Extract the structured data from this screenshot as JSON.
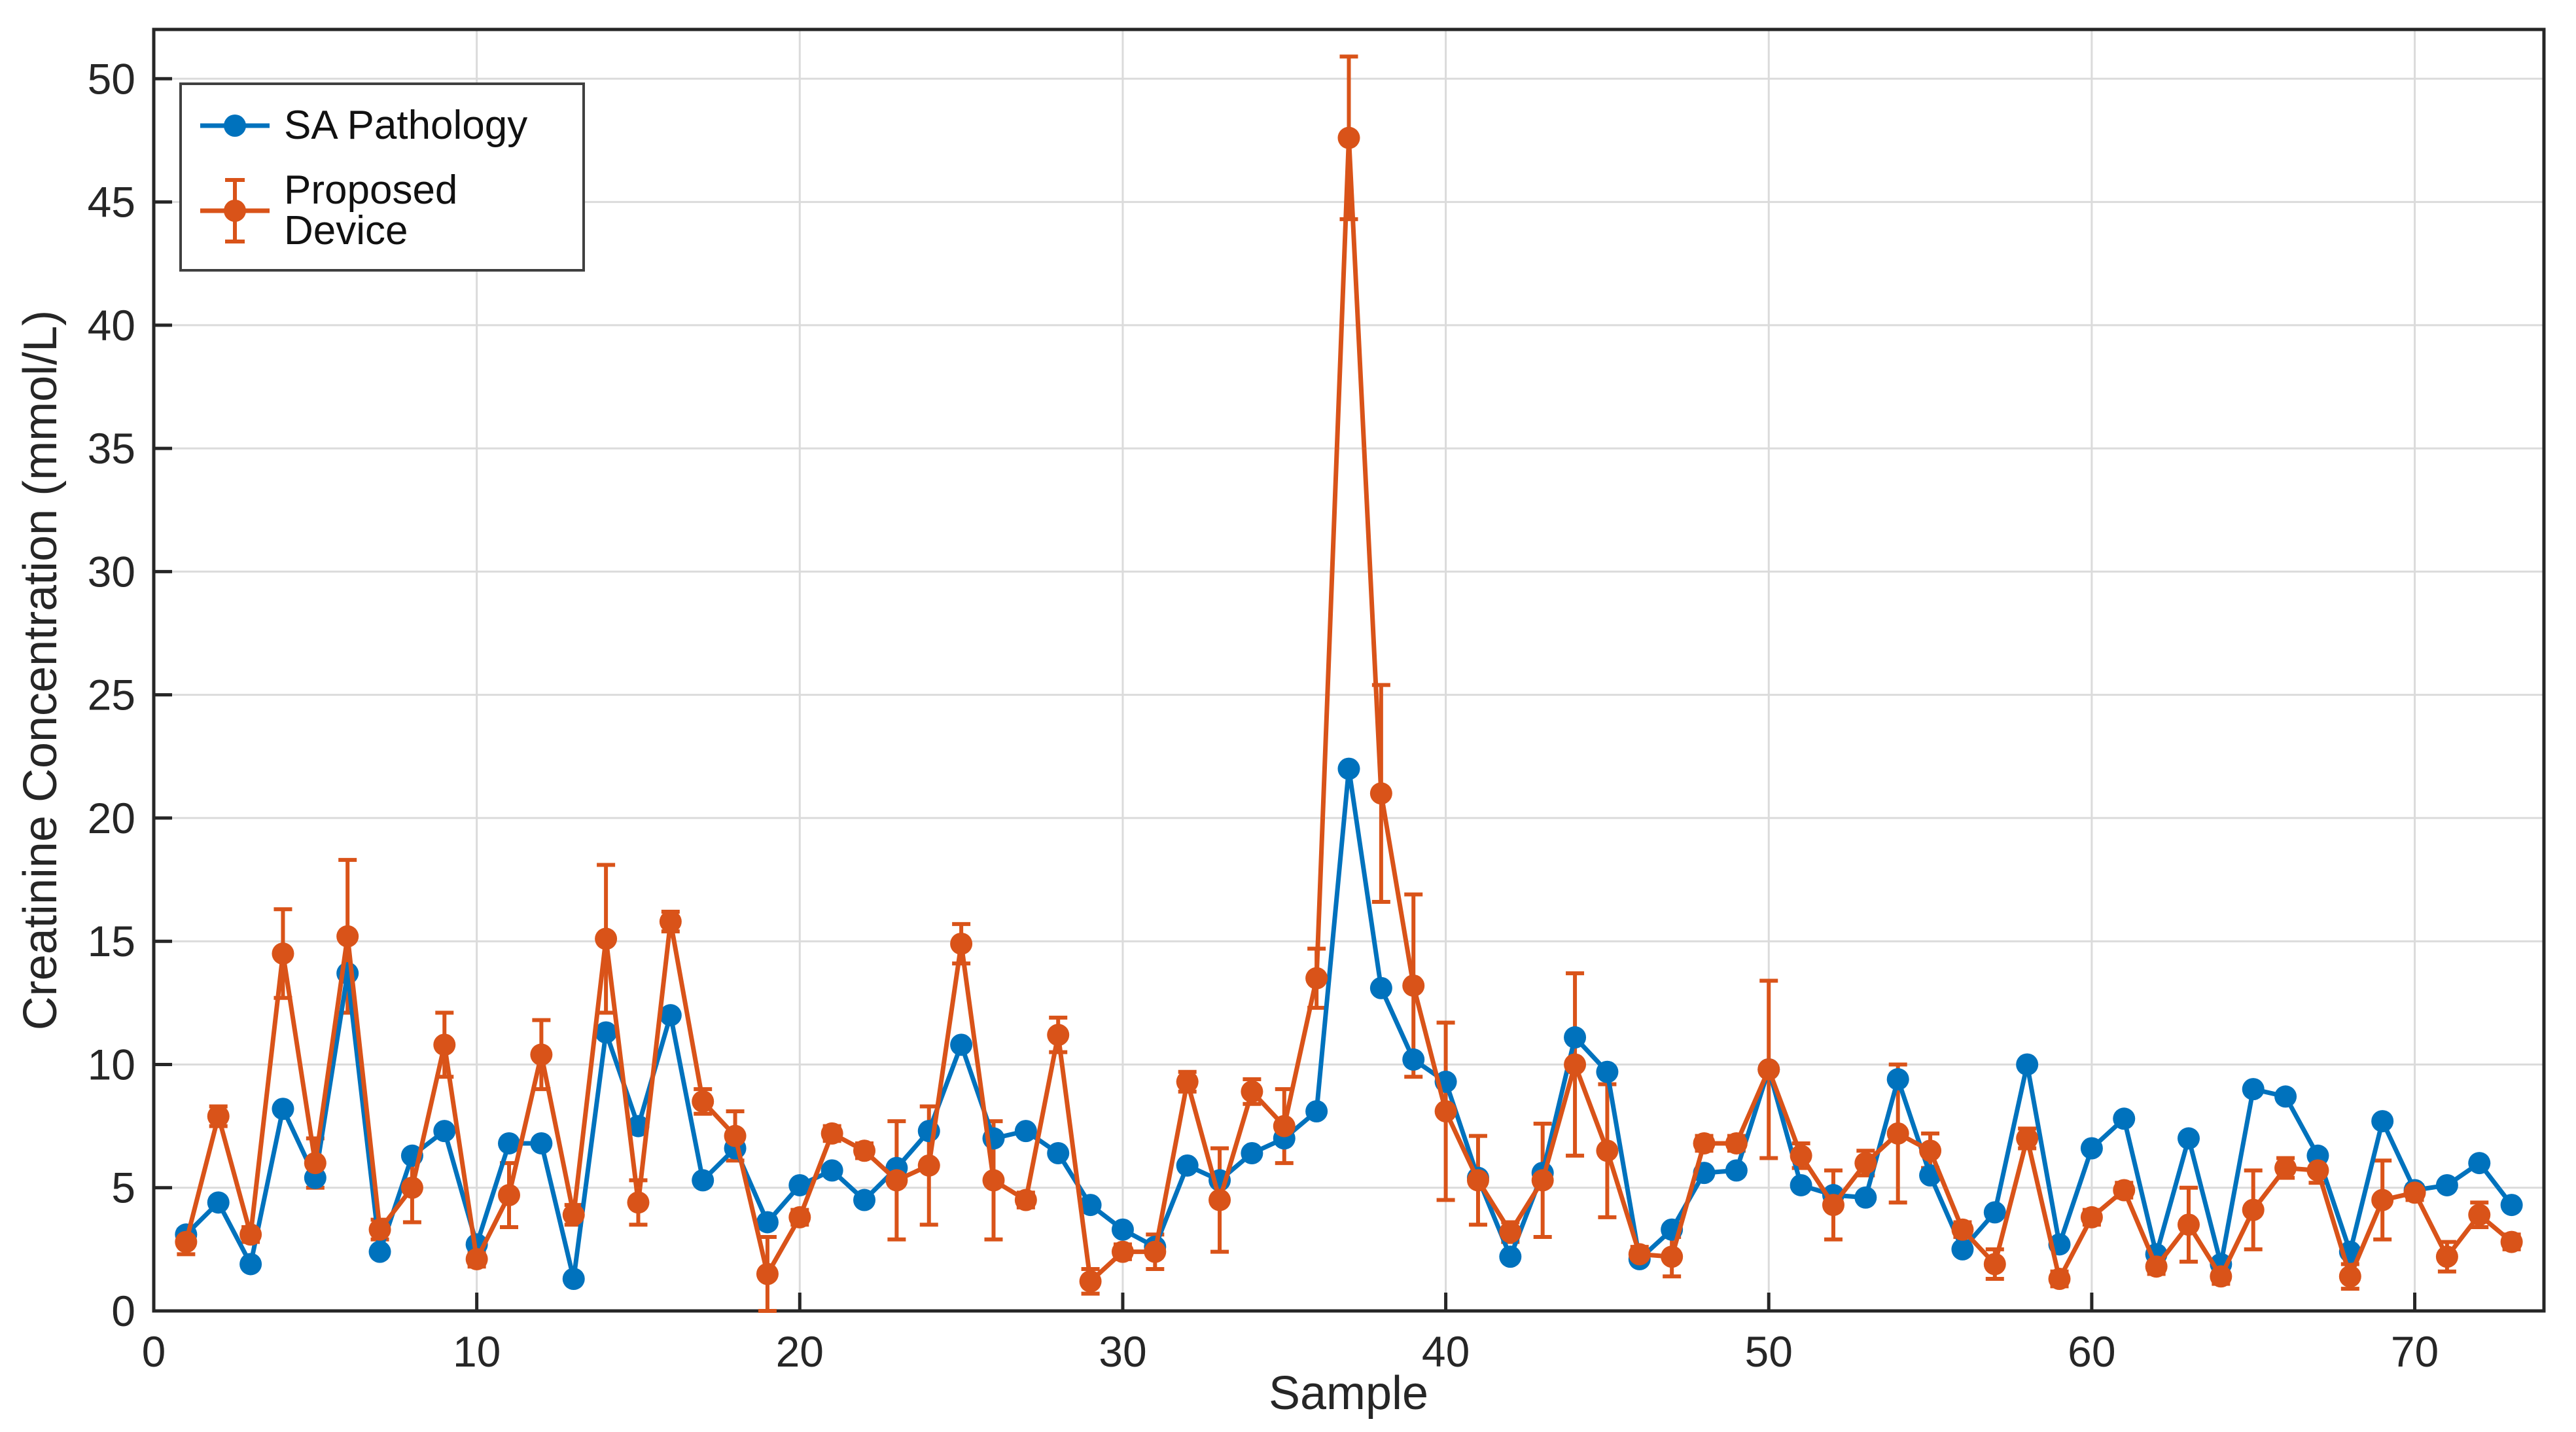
{
  "chart_data": {
    "type": "line",
    "title": "",
    "xlabel": "Sample",
    "ylabel": "Creatinine Concentration (mmol/L)",
    "xlim": [
      0,
      74
    ],
    "ylim": [
      0,
      52
    ],
    "xticks": [
      0,
      10,
      20,
      30,
      40,
      50,
      60,
      70
    ],
    "yticks": [
      0,
      5,
      10,
      15,
      20,
      25,
      30,
      35,
      40,
      45,
      50
    ],
    "grid": true,
    "legend_position": "top-left",
    "axis_color": "#262626",
    "grid_color": "#dbdbdb",
    "x": [
      1,
      2,
      3,
      4,
      5,
      6,
      7,
      8,
      9,
      10,
      11,
      12,
      13,
      14,
      15,
      16,
      17,
      18,
      19,
      20,
      21,
      22,
      23,
      24,
      25,
      26,
      27,
      28,
      29,
      30,
      31,
      32,
      33,
      34,
      35,
      36,
      37,
      38,
      39,
      40,
      41,
      42,
      43,
      44,
      45,
      46,
      47,
      48,
      49,
      50,
      51,
      52,
      53,
      54,
      55,
      56,
      57,
      58,
      59,
      60,
      61,
      62,
      63,
      64,
      65,
      66,
      67,
      68,
      69,
      70,
      71,
      72,
      73
    ],
    "series": [
      {
        "name": "SA Pathology",
        "color": "#0072BD",
        "marker": "circle",
        "errorbar": false,
        "values": [
          3.1,
          4.4,
          1.9,
          8.2,
          5.4,
          13.7,
          2.4,
          6.3,
          7.3,
          2.7,
          6.8,
          6.8,
          1.3,
          11.3,
          7.5,
          12.0,
          5.3,
          6.6,
          3.6,
          5.1,
          5.7,
          4.5,
          5.8,
          7.3,
          10.8,
          7.0,
          7.3,
          6.4,
          4.3,
          3.3,
          2.6,
          5.9,
          5.3,
          6.4,
          7.0,
          8.1,
          22.0,
          13.1,
          10.2,
          9.3,
          5.4,
          2.2,
          5.6,
          11.1,
          9.7,
          2.1,
          3.3,
          5.6,
          5.7,
          9.8,
          5.1,
          4.7,
          4.6,
          9.4,
          5.5,
          2.5,
          4.0,
          10.0,
          2.7,
          6.6,
          7.8,
          2.3,
          7.0,
          1.9,
          9.0,
          8.7,
          6.3,
          2.4,
          7.7,
          4.9,
          5.1,
          6.0,
          4.3
        ]
      },
      {
        "name": "Proposed Device",
        "color": "#D95319",
        "marker": "circle",
        "errorbar": true,
        "values": [
          2.8,
          7.9,
          3.1,
          14.5,
          6.0,
          15.2,
          3.3,
          5.0,
          10.8,
          2.1,
          4.7,
          10.4,
          3.9,
          15.1,
          4.4,
          15.8,
          8.5,
          7.1,
          1.5,
          3.8,
          7.2,
          6.5,
          5.3,
          5.9,
          14.9,
          5.3,
          4.5,
          11.2,
          1.2,
          2.4,
          2.4,
          9.3,
          4.5,
          8.9,
          7.5,
          13.5,
          47.6,
          21.0,
          13.2,
          8.1,
          5.3,
          3.2,
          5.3,
          10.0,
          6.5,
          2.3,
          2.2,
          6.8,
          6.8,
          9.8,
          6.3,
          4.3,
          6.0,
          7.2,
          6.5,
          3.3,
          1.9,
          7.0,
          1.3,
          3.8,
          4.9,
          1.8,
          3.5,
          1.4,
          4.1,
          5.8,
          5.7,
          1.4,
          4.5,
          4.8,
          2.2,
          3.9,
          2.8
        ],
        "yerr": [
          0.5,
          0.4,
          0.3,
          1.8,
          1.0,
          3.1,
          0.4,
          1.4,
          1.3,
          0.3,
          1.3,
          1.4,
          0.4,
          3.0,
          0.9,
          0.4,
          0.5,
          1.0,
          1.5,
          0.3,
          0.3,
          0.3,
          2.4,
          2.4,
          0.8,
          2.4,
          0.3,
          0.7,
          0.5,
          0.3,
          0.7,
          0.4,
          2.1,
          0.5,
          1.5,
          1.2,
          3.3,
          4.4,
          3.7,
          3.6,
          1.8,
          0.4,
          2.3,
          3.7,
          2.7,
          0.3,
          0.8,
          0.3,
          0.3,
          3.6,
          0.5,
          1.4,
          0.5,
          2.8,
          0.7,
          0.3,
          0.6,
          0.4,
          0.3,
          0.3,
          0.3,
          0.3,
          1.5,
          0.3,
          1.6,
          0.4,
          0.5,
          0.5,
          1.6,
          0.3,
          0.6,
          0.5,
          0.3
        ]
      }
    ]
  }
}
